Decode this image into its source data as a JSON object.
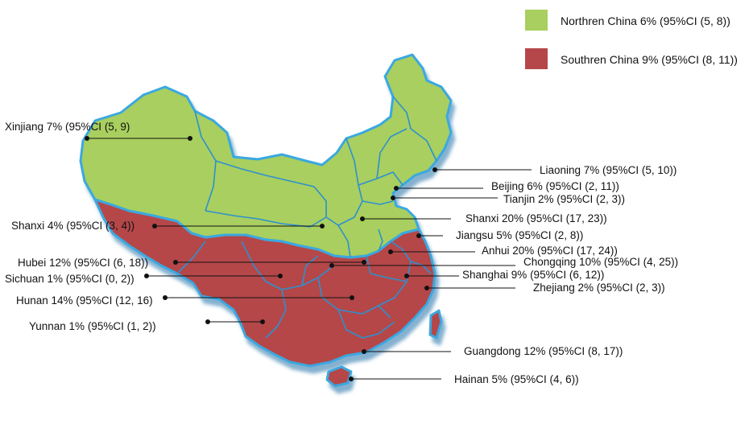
{
  "legend": [
    {
      "label": "Northren China 6% (95%CI (5, 8))",
      "color": "#a8cf5f"
    },
    {
      "label": "Southren China 9% (95%CI (8, 11))",
      "color": "#b5474a"
    }
  ],
  "provinces": [
    {
      "id": "xinjiang",
      "label": "Xinjiang 7% (95%CI (5, 9)"
    },
    {
      "id": "liaoning",
      "label": "Liaoning 7% (95%CI (5, 10))"
    },
    {
      "id": "beijing",
      "label": "Beijing 6% (95%CI (2, 11))"
    },
    {
      "id": "tianjin",
      "label": "Tianjin 2% (95%CI (2, 3))"
    },
    {
      "id": "shanxi20",
      "label": "Shanxi 20% (95%CI (17, 23))"
    },
    {
      "id": "shanxi4",
      "label": "Shanxi 4% (95%CI (3, 4))"
    },
    {
      "id": "jiangsu",
      "label": "Jiangsu 5% (95%CI (2, 8))"
    },
    {
      "id": "anhui",
      "label": "Anhui 20% (95%CI (17, 24))"
    },
    {
      "id": "hubei",
      "label": "Hubei 12% (95%CI (6, 18))"
    },
    {
      "id": "chongqing",
      "label": "Chongqing 10% (95%CI (4, 25))"
    },
    {
      "id": "sichuan",
      "label": "Sichuan 1% (95%CI (0, 2))"
    },
    {
      "id": "shanghai",
      "label": "Shanghai 9% (95%CI (6, 12))"
    },
    {
      "id": "hunan",
      "label": "Hunan 14% (95%CI (12, 16)"
    },
    {
      "id": "zhejiang",
      "label": "Zhejiang 2% (95%CI (2, 3))"
    },
    {
      "id": "yunnan",
      "label": "Yunnan 1% (95%CI (1, 2))"
    },
    {
      "id": "guangdong",
      "label": "Guangdong 12% (95%CI (8, 17))"
    },
    {
      "id": "hainan",
      "label": "Hainan 5% (95%CI (4, 6))"
    }
  ]
}
